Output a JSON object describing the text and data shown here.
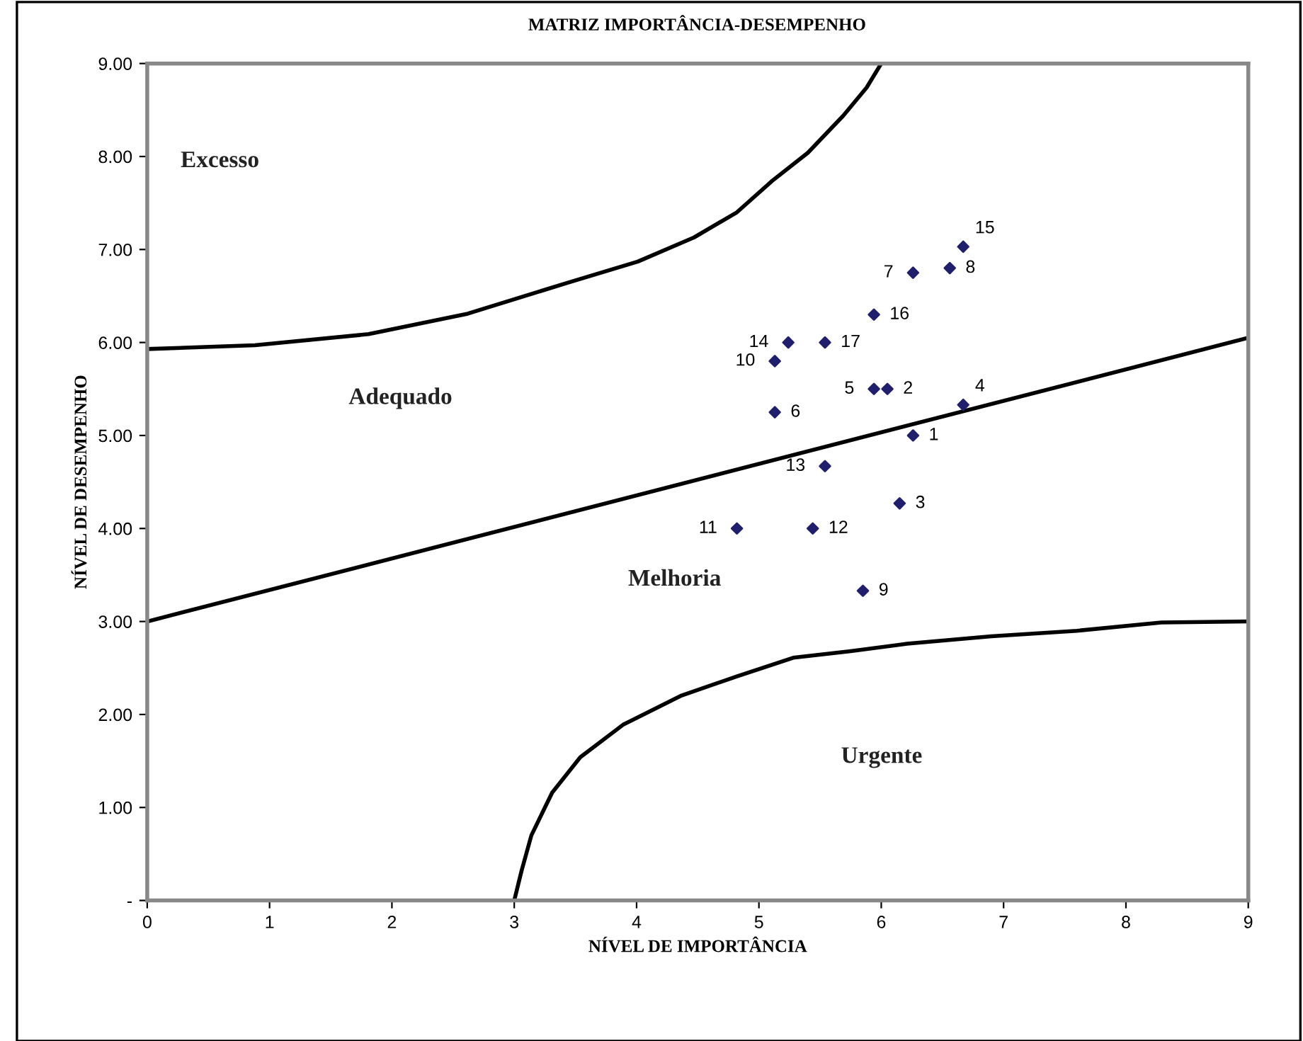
{
  "chart_data": {
    "type": "scatter",
    "title": "MATRIZ IMPORTÂNCIA-DESEMPENHO",
    "xlabel": "NÍVEL DE IMPORTÂNCIA",
    "ylabel": "NÍVEL DE DESEMPENHO",
    "xlim": [
      0,
      9
    ],
    "xticks": [
      0,
      1,
      2,
      3,
      4,
      5,
      6,
      7,
      8,
      9
    ],
    "ylim": [
      0,
      9
    ],
    "yticks": [
      {
        "value": 0,
        "label": "-"
      },
      {
        "value": 1,
        "label": "1.00"
      },
      {
        "value": 2,
        "label": "2.00"
      },
      {
        "value": 3,
        "label": "3.00"
      },
      {
        "value": 4,
        "label": "4.00"
      },
      {
        "value": 5,
        "label": "5.00"
      },
      {
        "value": 6,
        "label": "6.00"
      },
      {
        "value": 7,
        "label": "7.00"
      },
      {
        "value": 8,
        "label": "8.00"
      },
      {
        "value": 9,
        "label": "9.00"
      }
    ],
    "grid": false,
    "legend": false,
    "series": [
      {
        "color": "#1f1f6e",
        "marker": "diamond",
        "x": [
          6.26,
          6.05,
          6.15,
          6.67,
          5.94,
          5.13,
          6.26,
          6.56,
          5.85,
          5.13,
          4.82,
          5.44,
          5.54,
          5.24,
          6.67,
          5.94,
          5.54
        ],
        "values": [
          5.0,
          5.5,
          4.27,
          5.33,
          5.5,
          5.25,
          6.75,
          6.8,
          3.33,
          5.8,
          4.0,
          4.0,
          4.67,
          6.0,
          7.03,
          6.3,
          6.0
        ]
      },
      {
        "type": "line",
        "color": "#000000",
        "line_style": "solid",
        "marker": "none",
        "x": [
          0,
          0.88,
          1.81,
          2.62,
          3.43,
          4.01,
          4.47,
          4.82,
          5.11,
          5.4,
          5.69,
          5.88,
          6.0
        ],
        "values": [
          5.93,
          5.97,
          6.09,
          6.31,
          6.64,
          6.87,
          7.13,
          7.4,
          7.74,
          8.04,
          8.44,
          8.74,
          9.0
        ]
      },
      {
        "type": "line",
        "color": "#000000",
        "line_style": "solid",
        "marker": "none",
        "x": [
          0,
          9
        ],
        "values": [
          3.0,
          6.05
        ]
      },
      {
        "type": "line",
        "color": "#000000",
        "line_style": "solid",
        "marker": "none",
        "x": [
          3.0,
          3.06,
          3.14,
          3.31,
          3.54,
          3.89,
          4.36,
          4.82,
          5.28,
          5.75,
          6.21,
          6.9,
          7.6,
          8.29,
          9.0
        ],
        "values": [
          0,
          0.32,
          0.7,
          1.16,
          1.54,
          1.89,
          2.2,
          2.41,
          2.61,
          2.68,
          2.76,
          2.84,
          2.9,
          2.99,
          3.0
        ]
      }
    ],
    "annotations": [
      "Excesso",
      "Adequado",
      "Melhoria",
      "Urgente",
      {
        "text": "1",
        "x": 6.26,
        "y": 5.0
      },
      {
        "text": "2",
        "x": 6.05,
        "y": 5.5
      },
      {
        "text": "3",
        "x": 6.15,
        "y": 4.27
      },
      {
        "text": "4",
        "x": 6.67,
        "y": 5.33
      },
      {
        "text": "5",
        "x": 5.94,
        "y": 5.5
      },
      {
        "text": "6",
        "x": 5.13,
        "y": 5.25
      },
      {
        "text": "7",
        "x": 6.26,
        "y": 6.75
      },
      {
        "text": "8",
        "x": 6.56,
        "y": 6.8
      },
      {
        "text": "9",
        "x": 5.85,
        "y": 3.33
      },
      {
        "text": "10",
        "x": 5.13,
        "y": 5.8
      },
      {
        "text": "11",
        "x": 4.82,
        "y": 4.0
      },
      {
        "text": "12",
        "x": 5.44,
        "y": 4.0
      },
      {
        "text": "13",
        "x": 5.54,
        "y": 4.67
      },
      {
        "text": "14",
        "x": 5.24,
        "y": 6.0
      },
      {
        "text": "15",
        "x": 6.67,
        "y": 7.03
      },
      {
        "text": "16",
        "x": 5.94,
        "y": 6.3
      },
      {
        "text": "17",
        "x": 5.54,
        "y": 6.0
      }
    ]
  }
}
